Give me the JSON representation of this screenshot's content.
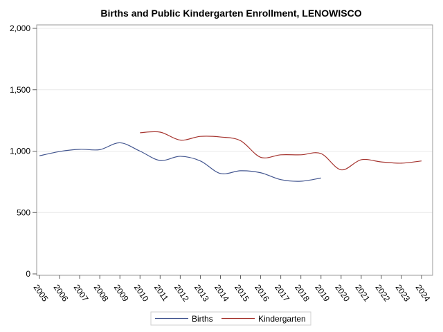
{
  "chart_data": {
    "type": "line",
    "title": "Births and Public Kindergarten Enrollment, LENOWISCO",
    "xlabel": "",
    "ylabel": "",
    "x": [
      "2005",
      "2006",
      "2007",
      "2008",
      "2009",
      "2010",
      "2011",
      "2012",
      "2013",
      "2014",
      "2015",
      "2016",
      "2017",
      "2018",
      "2019",
      "2020",
      "2021",
      "2022",
      "2023",
      "2024"
    ],
    "ylim": [
      0,
      2000
    ],
    "yticks": [
      0,
      500,
      1000,
      1500,
      2000
    ],
    "ytick_labels": [
      "0",
      "500",
      "1,000",
      "1,500",
      "2,000"
    ],
    "grid": true,
    "legend": "bottom",
    "series": [
      {
        "name": "Births",
        "color": "#42558f",
        "values": [
          962,
          997,
          1015,
          1012,
          1068,
          1000,
          924,
          958,
          920,
          818,
          840,
          824,
          768,
          755,
          781,
          null,
          null,
          null,
          null,
          null
        ]
      },
      {
        "name": "Kindergarten",
        "color": "#a5332e",
        "values": [
          null,
          null,
          null,
          null,
          null,
          1150,
          1155,
          1090,
          1120,
          1115,
          1085,
          950,
          970,
          970,
          980,
          848,
          930,
          912,
          902,
          920
        ]
      }
    ]
  }
}
